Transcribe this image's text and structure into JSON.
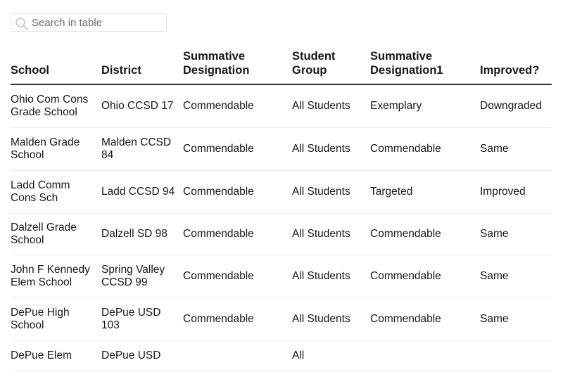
{
  "search": {
    "placeholder": "Search in table",
    "icon": "search-icon"
  },
  "table": {
    "headers": [
      "School",
      "District",
      "Summative Designation",
      "Student Group",
      "Summative Designation1",
      "Improved?"
    ],
    "rows": [
      [
        "Ohio Com Cons Grade School",
        "Ohio CCSD 17",
        "Commendable",
        "All Students",
        "Exemplary",
        "Downgraded"
      ],
      [
        "Malden Grade School",
        "Malden CCSD 84",
        "Commendable",
        "All Students",
        "Commendable",
        "Same"
      ],
      [
        "Ladd Comm Cons Sch",
        "Ladd CCSD 94",
        "Commendable",
        "All Students",
        "Targeted",
        "Improved"
      ],
      [
        "Dalzell Grade School",
        "Dalzell SD 98",
        "Commendable",
        "All Students",
        "Commendable",
        "Same"
      ],
      [
        "John F Kennedy Elem School",
        "Spring Valley CCSD 99",
        "Commendable",
        "All Students",
        "Commendable",
        "Same"
      ],
      [
        "DePue High School",
        "DePue USD 103",
        "Commendable",
        "All Students",
        "Commendable",
        "Same"
      ],
      [
        "DePue Elem",
        "DePue USD",
        "",
        "All",
        "",
        ""
      ]
    ]
  },
  "colors": {
    "header_rule": "#333333",
    "row_rule": "#ececec",
    "text": "#181818"
  }
}
